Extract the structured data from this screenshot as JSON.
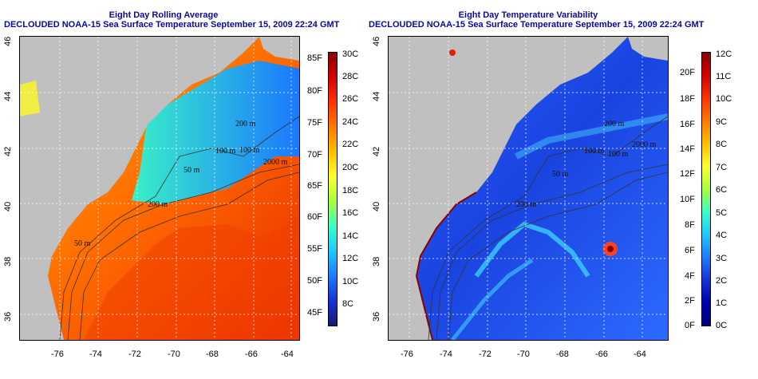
{
  "panels": [
    {
      "id": "left",
      "title": "Eight Day Rolling Average",
      "subtitle": "DECLOUDED NOAA-15 Sea Surface Temperature September 15, 2009 22:24 GMT",
      "x_ticks": [
        "-76",
        "-74",
        "-72",
        "-70",
        "-68",
        "-66",
        "-64"
      ],
      "y_ticks": [
        "46",
        "44",
        "42",
        "40",
        "38",
        "36"
      ],
      "contour_labels": [
        "200 m",
        "100 m",
        "50 m",
        "100 m",
        "2000 m",
        "200 m",
        "50 m"
      ],
      "colorbar": {
        "left_labels": [
          "85F",
          "80F",
          "75F",
          "70F",
          "65F",
          "60F",
          "55F",
          "50F",
          "45F"
        ],
        "right_labels": [
          "30C",
          "28C",
          "26C",
          "24C",
          "22C",
          "20C",
          "18C",
          "16C",
          "14C",
          "12C",
          "10C",
          "8C"
        ],
        "colors": [
          "#8b0000",
          "#d40000",
          "#ff3300",
          "#ff7a00",
          "#ffc000",
          "#ffff33",
          "#a8ff3a",
          "#3affc8",
          "#1ec8ff",
          "#1b7cff",
          "#1433d8",
          "#191970"
        ]
      }
    },
    {
      "id": "right",
      "title": "Eight Day Temperature Variability",
      "subtitle": "DECLOUDED NOAA-15 Sea Surface Temperature September 15, 2009 22:24 GMT",
      "x_ticks": [
        "-76",
        "-74",
        "-72",
        "-70",
        "-68",
        "-66",
        "-64"
      ],
      "y_ticks": [
        "46",
        "44",
        "42",
        "40",
        "38",
        "36"
      ],
      "contour_labels": [
        "200 m",
        "100 m",
        "2000 m",
        "50 m",
        "100 m",
        "200 m"
      ],
      "colorbar": {
        "left_labels": [
          "20F",
          "18F",
          "16F",
          "14F",
          "12F",
          "10F",
          "8F",
          "6F",
          "4F",
          "2F",
          "0F"
        ],
        "right_labels": [
          "12C",
          "11C",
          "10C",
          "9C",
          "8C",
          "7C",
          "6C",
          "5C",
          "4C",
          "3C",
          "2C",
          "1C",
          "0C"
        ],
        "colors": [
          "#8b0000",
          "#d40000",
          "#ff3300",
          "#ff7a00",
          "#ffc000",
          "#ffff33",
          "#a8ff3a",
          "#3affc8",
          "#1ec8ff",
          "#1b7cff",
          "#1433d8",
          "#0000b0",
          "#000080"
        ]
      }
    }
  ]
}
